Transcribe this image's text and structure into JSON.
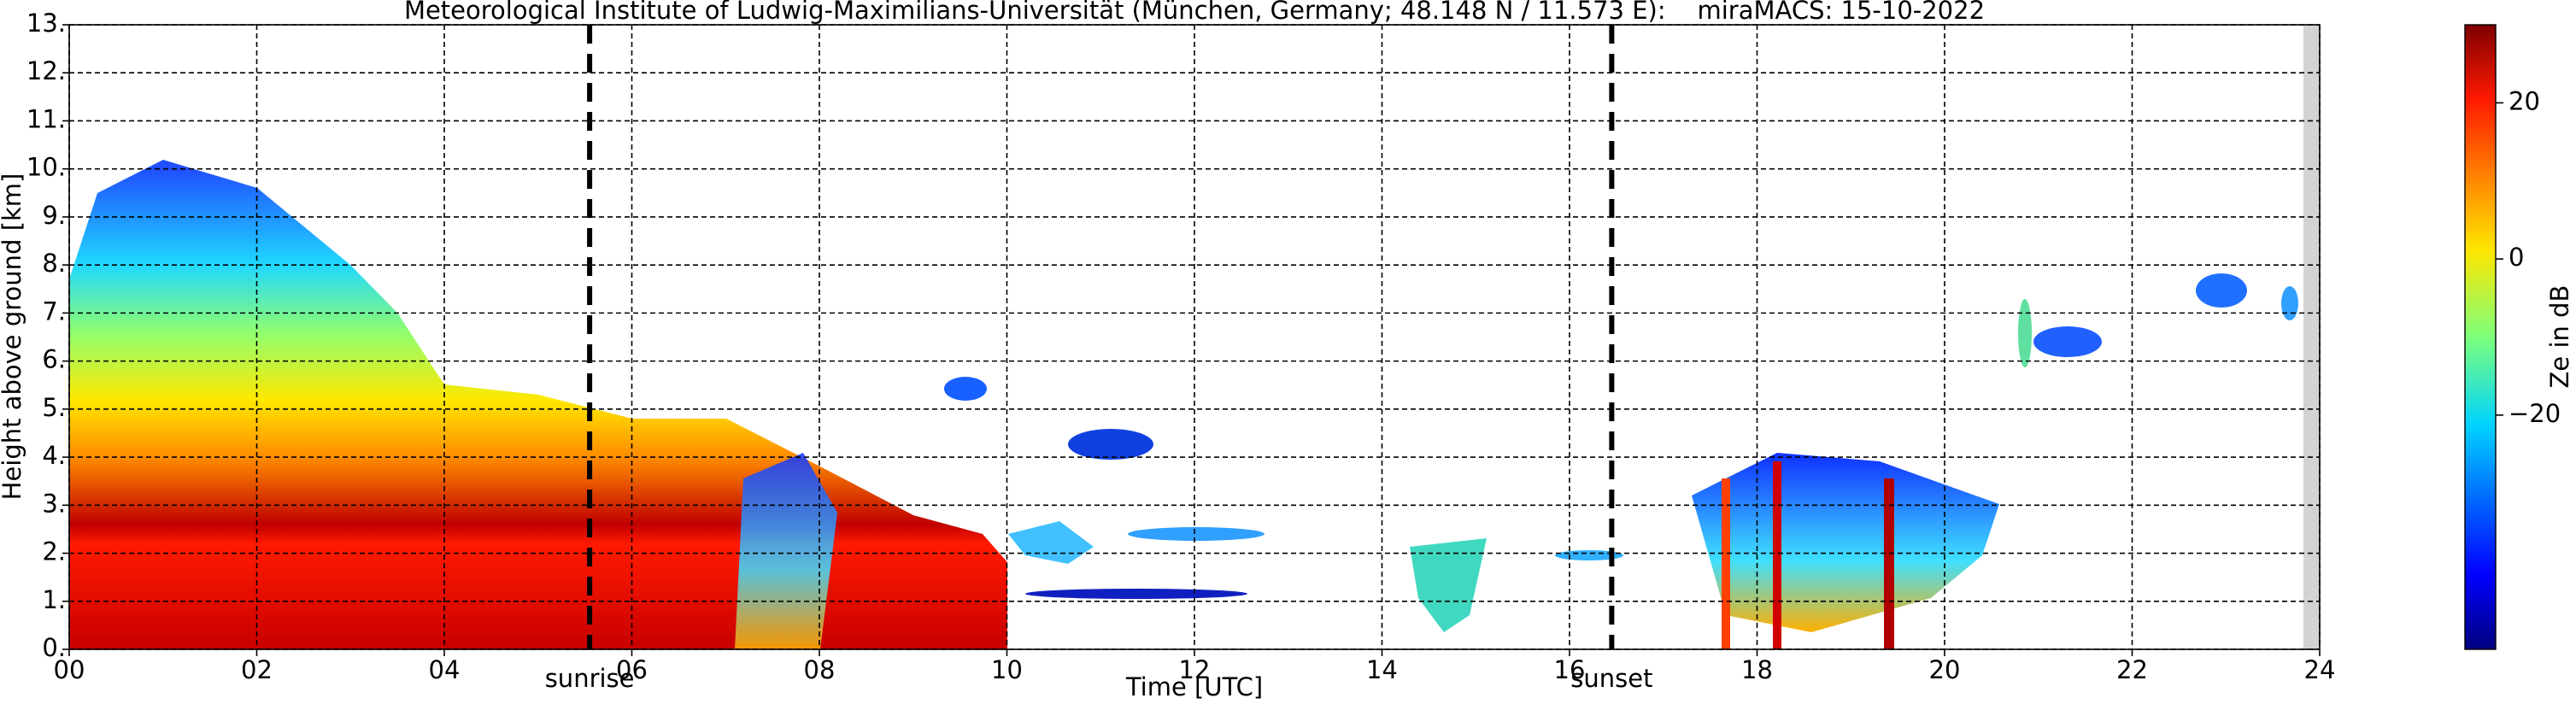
{
  "chart_data": {
    "type": "heatmap",
    "title": "Meteorological Institute of Ludwig-Maximilians-Universität (München, Germany; 48.148 N / 11.573 E):    miraMACS: 15-10-2022",
    "x_label": "Time [UTC]",
    "y_label": "Height above ground [km]",
    "xlim": [
      0,
      24
    ],
    "xticks": [
      {
        "value": 0,
        "label": "00"
      },
      {
        "value": 2,
        "label": "02"
      },
      {
        "value": 4,
        "label": "04"
      },
      {
        "value": 6,
        "label": "06"
      },
      {
        "value": 8,
        "label": "08"
      },
      10,
      12,
      14,
      16,
      18,
      20,
      22,
      24
    ],
    "ylim": [
      0,
      13
    ],
    "yticks": [
      {
        "value": 0,
        "label": "0."
      },
      {
        "value": 1,
        "label": "1."
      },
      {
        "value": 2,
        "label": "2."
      },
      {
        "value": 3,
        "label": "3."
      },
      {
        "value": 4,
        "label": "4."
      },
      {
        "value": 5,
        "label": "5."
      },
      {
        "value": 6,
        "label": "6."
      },
      {
        "value": 7,
        "label": "7."
      },
      {
        "value": 8,
        "label": "8."
      },
      {
        "value": 9,
        "label": "9."
      },
      {
        "value": 10,
        "label": "10."
      },
      {
        "value": 11,
        "label": "11."
      },
      {
        "value": 12,
        "label": "12."
      },
      {
        "value": 13,
        "label": "13."
      }
    ],
    "grid": true,
    "colorbar": {
      "label": "Ze in dB",
      "lim": [
        -50,
        30
      ],
      "ticks": [
        {
          "value": -20,
          "label": "−20"
        },
        0,
        20
      ]
    },
    "events": [
      {
        "label": "sunrise",
        "x": 5.55
      },
      {
        "label": "sunset",
        "x": 16.45
      }
    ]
  }
}
